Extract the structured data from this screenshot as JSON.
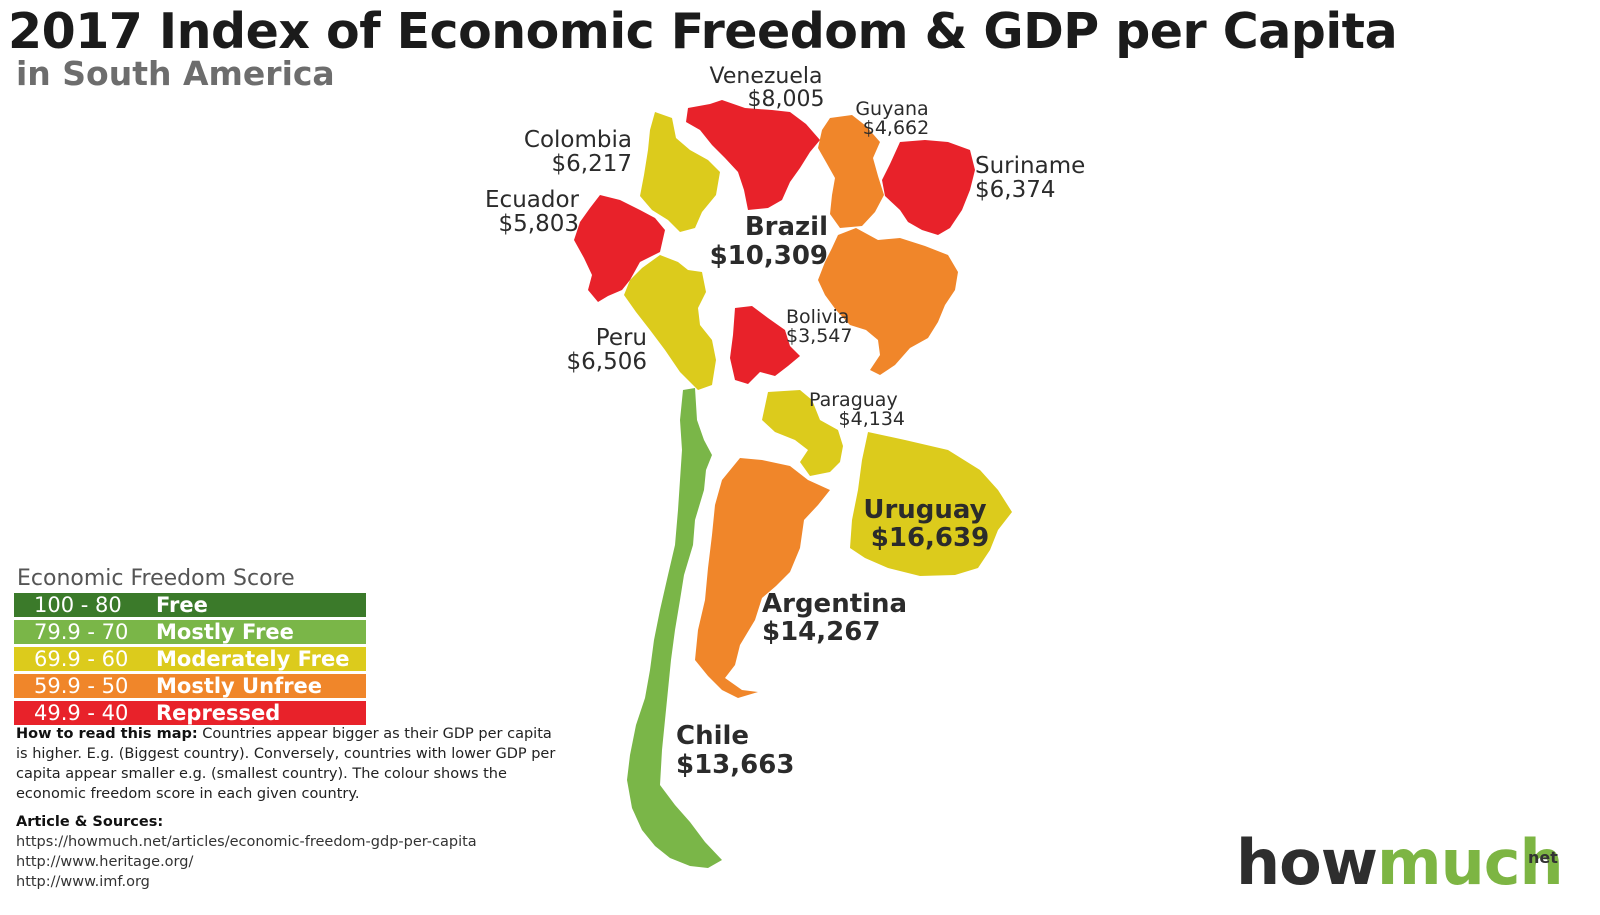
{
  "title": "2017 Index of Economic Freedom & GDP per Capita",
  "subtitle": "in South America",
  "colors": {
    "free": "#3b7a2a",
    "mostly_free": "#7ab648",
    "moderately_free": "#dccb1c",
    "mostly_unfree": "#f0862a",
    "repressed": "#e8222a"
  },
  "countries": [
    {
      "id": "venezuela",
      "name": "Venezuela",
      "gdp": "$8,005",
      "category": "repressed"
    },
    {
      "id": "guyana",
      "name": "Guyana",
      "gdp": "$4,662",
      "category": "mostly_unfree"
    },
    {
      "id": "colombia",
      "name": "Colombia",
      "gdp": "$6,217",
      "category": "moderately_free"
    },
    {
      "id": "suriname",
      "name": "Suriname",
      "gdp": "$6,374",
      "category": "repressed"
    },
    {
      "id": "ecuador",
      "name": "Ecuador",
      "gdp": "$5,803",
      "category": "repressed"
    },
    {
      "id": "brazil",
      "name": "Brazil",
      "gdp": "$10,309",
      "category": "mostly_unfree"
    },
    {
      "id": "bolivia",
      "name": "Bolivia",
      "gdp": "$3,547",
      "category": "repressed"
    },
    {
      "id": "peru",
      "name": "Peru",
      "gdp": "$6,506",
      "category": "moderately_free"
    },
    {
      "id": "paraguay",
      "name": "Paraguay",
      "gdp": "$4,134",
      "category": "moderately_free"
    },
    {
      "id": "uruguay",
      "name": "Uruguay",
      "gdp": "$16,639",
      "category": "moderately_free"
    },
    {
      "id": "argentina",
      "name": "Argentina",
      "gdp": "$14,267",
      "category": "mostly_unfree"
    },
    {
      "id": "chile",
      "name": "Chile",
      "gdp": "$13,663",
      "category": "mostly_free"
    }
  ],
  "legend": {
    "title": "Economic Freedom Score",
    "items": [
      {
        "range": "100 - 80",
        "label": "Free",
        "category": "free"
      },
      {
        "range": "79.9 - 70",
        "label": "Mostly Free",
        "category": "mostly_free"
      },
      {
        "range": "69.9 - 60",
        "label": "Moderately Free",
        "category": "moderately_free"
      },
      {
        "range": "59.9 - 50",
        "label": "Mostly Unfree",
        "category": "mostly_unfree"
      },
      {
        "range": "49.9 - 40",
        "label": "Repressed",
        "category": "repressed"
      }
    ]
  },
  "howto": {
    "heading": "How to read this map:",
    "text": "Countries appear bigger as their GDP per capita is higher. E.g. (Biggest country). Conversely, countries with lower GDP per capita appear smaller e.g. (smallest country). The colour shows the economic freedom score in each given country."
  },
  "sources": {
    "heading": "Article & Sources:",
    "links": [
      "https://howmuch.net/articles/economic-freedom-gdp-per-capita",
      "http://www.heritage.org/",
      "http://www.imf.org"
    ]
  },
  "logo": {
    "part1": "how",
    "part2": "much",
    "suffix": "net"
  }
}
